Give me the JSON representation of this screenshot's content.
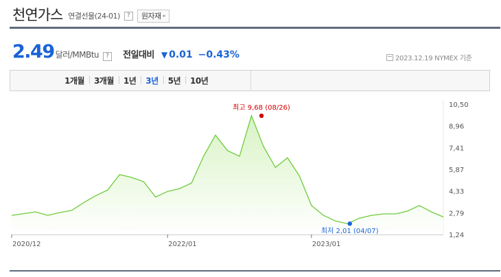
{
  "header": {
    "title": "천연가스",
    "subtitle": "연결선물(24-01)",
    "help_glyph": "?",
    "raw_button": "원자재",
    "raw_button_arrow": "▸"
  },
  "quote": {
    "price": "2.49",
    "unit": "달러/MMBtu",
    "unit_help": "?",
    "compare_label": "전일대비",
    "change_arrow": "▼",
    "change": "0.01",
    "change_pct": "−0.43%",
    "base_text": "2023.12.19 NYMEX 기준",
    "down_color": "#1a63d6"
  },
  "periods": {
    "items": [
      "1개월",
      "3개월",
      "1년",
      "3년",
      "5년",
      "10년"
    ],
    "active_index": 3
  },
  "chart_data": {
    "type": "area",
    "x_start": "2020-12",
    "x_end": "2023-12",
    "x_ticks": [
      {
        "label": "2020/12",
        "date": "2020-12"
      },
      {
        "label": "2022/01",
        "date": "2022-01"
      },
      {
        "label": "2023/01",
        "date": "2023-01"
      }
    ],
    "ylim": [
      1.24,
      10.5
    ],
    "y_ticks": [
      "10,50",
      "8,96",
      "7,41",
      "5,87",
      "4,33",
      "2,79",
      "1,24"
    ],
    "line_color": "#6ecb3a",
    "fill_color": "#d8f3c4",
    "annotations": {
      "high": {
        "label": "최고 9,68 (08/26)",
        "date": "2022-08-26",
        "value": 9.68,
        "color": "#d40000"
      },
      "low": {
        "label": "최저 2,01 (04/07)",
        "date": "2023-04-07",
        "value": 2.01,
        "color": "#1a63d6"
      }
    },
    "series": [
      {
        "values": [
          [
            "2020-12",
            2.6
          ],
          [
            "2021-01",
            2.72
          ],
          [
            "2021-02",
            2.85
          ],
          [
            "2021-03",
            2.6
          ],
          [
            "2021-04",
            2.8
          ],
          [
            "2021-05",
            2.95
          ],
          [
            "2021-06",
            3.5
          ],
          [
            "2021-07",
            4.0
          ],
          [
            "2021-08",
            4.4
          ],
          [
            "2021-09",
            5.5
          ],
          [
            "2021-10",
            5.3
          ],
          [
            "2021-11",
            5.0
          ],
          [
            "2021-12",
            3.9
          ],
          [
            "2022-01",
            4.3
          ],
          [
            "2022-02",
            4.5
          ],
          [
            "2022-03",
            4.9
          ],
          [
            "2022-04",
            6.8
          ],
          [
            "2022-05",
            8.3
          ],
          [
            "2022-06",
            7.2
          ],
          [
            "2022-07",
            6.8
          ],
          [
            "2022-08",
            9.68
          ],
          [
            "2022-09",
            7.5
          ],
          [
            "2022-10",
            6.0
          ],
          [
            "2022-11",
            6.7
          ],
          [
            "2022-12",
            5.4
          ],
          [
            "2023-01",
            3.3
          ],
          [
            "2023-02",
            2.6
          ],
          [
            "2023-03",
            2.2
          ],
          [
            "2023-04",
            2.01
          ],
          [
            "2023-05",
            2.4
          ],
          [
            "2023-06",
            2.6
          ],
          [
            "2023-07",
            2.7
          ],
          [
            "2023-08",
            2.7
          ],
          [
            "2023-09",
            2.9
          ],
          [
            "2023-10",
            3.3
          ],
          [
            "2023-11",
            2.85
          ],
          [
            "2023-12",
            2.49
          ]
        ]
      }
    ]
  }
}
